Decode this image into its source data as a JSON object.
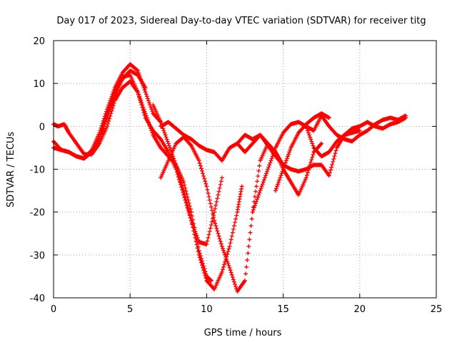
{
  "chart_data": {
    "type": "scatter",
    "title": "Day 017 of 2023, Sidereal Day-to-day VTEC variation (SDTVAR) for receiver titg",
    "xlabel": "GPS time / hours",
    "ylabel": "SDTVAR / TECUs",
    "xlim": [
      0,
      25
    ],
    "ylim": [
      -40,
      20
    ],
    "x_ticks": [
      0,
      5,
      10,
      15,
      20,
      25
    ],
    "y_ticks": [
      -40,
      -30,
      -20,
      -10,
      0,
      10,
      20
    ],
    "x_tick_labels": [
      "0",
      "5",
      "10",
      "15",
      "20",
      "25"
    ],
    "y_tick_labels": [
      "-40",
      "-30",
      "-20",
      "-10",
      "0",
      "10",
      "20"
    ],
    "grid": true,
    "marker": "+",
    "marker_color": "#ff0000",
    "grid_color": "#a0a0a0",
    "series": [
      {
        "x": [
          0.0,
          0.5,
          1.0,
          1.5,
          2.0,
          2.5,
          3.0,
          3.5,
          4.0,
          4.5,
          5.0,
          5.5,
          6.0,
          6.5,
          7.0
        ],
        "y": [
          -3.5,
          -5.5,
          -6.0,
          -7.0,
          -7.5,
          -5.5,
          -1.5,
          4.0,
          9.0,
          12.5,
          14.5,
          13.0,
          8.0,
          3.0,
          1.0
        ]
      },
      {
        "x": [
          0.0,
          0.5,
          1.0,
          1.5,
          2.0,
          2.5,
          3.0,
          3.5,
          4.0,
          4.5,
          5.0,
          5.5,
          6.0,
          6.5,
          7.0,
          7.5,
          8.0,
          8.5,
          9.0,
          9.5,
          10.0,
          10.5,
          11.0
        ],
        "y": [
          -5.0,
          -5.5,
          -6.0,
          -7.0,
          -7.5,
          -6.0,
          -3.0,
          3.0,
          8.0,
          11.5,
          12.0,
          8.0,
          2.0,
          -1.0,
          -3.0,
          -6.0,
          -10.0,
          -16.0,
          -22.0,
          -27.0,
          -27.5,
          -20.0,
          -12.0
        ]
      },
      {
        "x": [
          0.0,
          0.3,
          0.7,
          1.0,
          1.5,
          2.0,
          2.5,
          3.0,
          3.5,
          4.0,
          4.5,
          5.0,
          5.5,
          6.0,
          6.5,
          7.0,
          7.5,
          8.0,
          8.5,
          9.0,
          9.5,
          10.0,
          10.3
        ],
        "y": [
          0.5,
          0.0,
          0.5,
          -1.5,
          -4.0,
          -6.5,
          -6.5,
          -4.0,
          0.0,
          6.0,
          9.0,
          10.5,
          8.0,
          3.0,
          -2.0,
          -5.0,
          -7.0,
          -9.0,
          -13.0,
          -20.0,
          -29.0,
          -35.0,
          -36.0
        ]
      },
      {
        "x": [
          6.5,
          7.0,
          7.5,
          8.0,
          8.5,
          9.0,
          9.5,
          10.0,
          10.5,
          11.0,
          11.5,
          12.0,
          12.3
        ],
        "y": [
          5.0,
          1.0,
          -4.0,
          -9.0,
          -15.0,
          -22.0,
          -30.0,
          -36.0,
          -38.0,
          -34.0,
          -28.0,
          -20.0,
          -14.0
        ]
      },
      {
        "x": [
          7.0,
          7.5,
          8.0,
          8.5,
          9.0,
          9.5,
          10.0,
          10.5,
          11.0,
          11.5,
          12.0,
          12.5,
          13.0,
          13.5,
          14.0,
          14.5,
          15.0
        ],
        "y": [
          -12.0,
          -8.0,
          -4.0,
          -2.5,
          -4.5,
          -8.0,
          -14.0,
          -22.0,
          -28.0,
          -33.0,
          -38.5,
          -36.0,
          -20.0,
          -8.0,
          -4.0,
          -6.0,
          -9.0
        ]
      },
      {
        "x": [
          7.0,
          7.5,
          8.0,
          8.5,
          9.0,
          9.5,
          10.0,
          10.5,
          11.0,
          11.5,
          12.0,
          12.5,
          13.0,
          13.5,
          14.0,
          14.5,
          15.0,
          15.5,
          16.0,
          16.5,
          17.0,
          17.5
        ],
        "y": [
          0.0,
          1.0,
          -0.5,
          -2.0,
          -3.0,
          -4.5,
          -5.5,
          -6.0,
          -8.0,
          -5.0,
          -4.0,
          -2.0,
          -3.0,
          -2.0,
          -4.0,
          -6.0,
          -10.0,
          -13.0,
          -16.0,
          -12.0,
          -6.0,
          -4.0
        ]
      },
      {
        "x": [
          12.0,
          12.5,
          13.0,
          13.5,
          14.0,
          14.5,
          15.0,
          15.5,
          16.0,
          16.5,
          17.0,
          17.5,
          18.0,
          18.5,
          19.0,
          19.5,
          20.0
        ],
        "y": [
          -4.0,
          -6.0,
          -4.0,
          -2.0,
          -4.5,
          -7.0,
          -9.0,
          -10.0,
          -10.5,
          -10.0,
          -9.0,
          -9.0,
          -11.5,
          -5.0,
          -2.0,
          -1.5,
          -1.0
        ]
      },
      {
        "x": [
          13.0,
          13.5,
          14.0,
          14.5,
          15.0,
          15.5,
          16.0,
          16.5,
          17.0,
          17.5,
          18.0,
          18.5,
          19.0,
          19.5,
          20.0,
          20.5,
          21.0,
          21.5,
          22.0,
          22.5,
          23.0
        ],
        "y": [
          -20.0,
          -15.0,
          -10.0,
          -5.0,
          -1.5,
          0.5,
          1.0,
          0.0,
          -1.0,
          2.5,
          0.0,
          -2.0,
          -3.0,
          -3.5,
          -2.0,
          -1.0,
          0.5,
          1.5,
          2.0,
          1.5,
          2.5
        ]
      },
      {
        "x": [
          3.0,
          3.5,
          4.0,
          4.5,
          5.0,
          5.5,
          6.0
        ],
        "y": [
          -3.0,
          2.0,
          7.0,
          11.0,
          13.0,
          12.0,
          9.0
        ]
      },
      {
        "x": [
          16.5,
          17.0,
          17.5,
          18.0,
          18.5,
          19.0,
          19.5,
          20.0,
          20.5,
          21.0,
          21.5,
          22.0,
          22.5,
          23.0
        ],
        "y": [
          0.0,
          -5.0,
          -7.0,
          -6.0,
          -3.5,
          -2.0,
          -0.5,
          0.0,
          1.0,
          0.0,
          -0.5,
          0.5,
          1.0,
          2.0
        ]
      },
      {
        "x": [
          14.5,
          15.0,
          15.5,
          16.0,
          16.5,
          17.0,
          17.5,
          18.0
        ],
        "y": [
          -15.0,
          -10.0,
          -5.0,
          -1.5,
          0.5,
          2.0,
          3.0,
          2.0
        ]
      }
    ]
  }
}
